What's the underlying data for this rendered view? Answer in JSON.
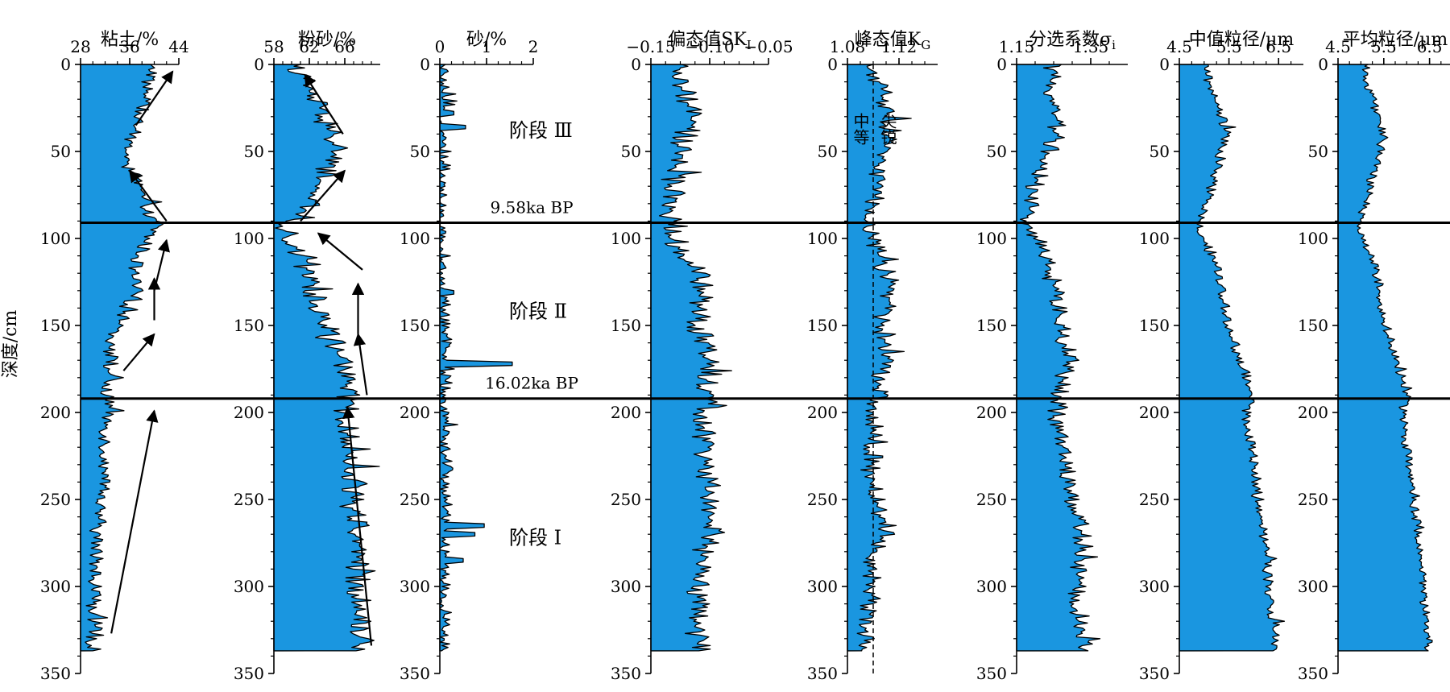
{
  "chart_data": {
    "type": "area",
    "ylabel": "深度/cm",
    "y_range": [
      0,
      350
    ],
    "y_ticks": [
      0,
      50,
      100,
      150,
      200,
      250,
      300,
      350
    ],
    "data_bottom_depth": 337,
    "fill_color": "#1A96E0",
    "line_color": "#000000",
    "boundaries": [
      {
        "depth": 91,
        "label": "9.58ka BP"
      },
      {
        "depth": 192,
        "label": "16.02ka BP"
      }
    ],
    "stages": [
      {
        "label": "阶段 Ⅲ",
        "depth": 38
      },
      {
        "label": "阶段 Ⅱ",
        "depth": 142
      },
      {
        "label": "阶段 Ⅰ",
        "depth": 272
      }
    ],
    "panels": [
      {
        "title": "粘土/%",
        "x_ticks": [
          "28",
          "36",
          "44"
        ],
        "x_range": [
          28,
          44
        ],
        "profile": [
          [
            0,
            39
          ],
          [
            5,
            40
          ],
          [
            10,
            39
          ],
          [
            20,
            38.5
          ],
          [
            30,
            37.5
          ],
          [
            40,
            36.5
          ],
          [
            50,
            35.5
          ],
          [
            60,
            36
          ],
          [
            70,
            37.5
          ],
          [
            80,
            38.5
          ],
          [
            88,
            39
          ],
          [
            91,
            41
          ],
          [
            95,
            40
          ],
          [
            100,
            39
          ],
          [
            110,
            37.5
          ],
          [
            120,
            36.5
          ],
          [
            130,
            37
          ],
          [
            140,
            35.5
          ],
          [
            150,
            34.5
          ],
          [
            160,
            33
          ],
          [
            170,
            33
          ],
          [
            180,
            32.5
          ],
          [
            190,
            32
          ],
          [
            195,
            33
          ],
          [
            200,
            32.5
          ],
          [
            220,
            32
          ],
          [
            240,
            31.5
          ],
          [
            260,
            31
          ],
          [
            280,
            30.5
          ],
          [
            300,
            30.5
          ],
          [
            320,
            30
          ],
          [
            330,
            30
          ],
          [
            337,
            30
          ]
        ],
        "noise": 1.3
      },
      {
        "title": "粉砂/%",
        "x_ticks": [
          "58",
          "62",
          "66"
        ],
        "x_range": [
          58,
          70
        ],
        "profile": [
          [
            0,
            60.5
          ],
          [
            5,
            61
          ],
          [
            10,
            61.5
          ],
          [
            20,
            62.5
          ],
          [
            30,
            63.5
          ],
          [
            40,
            64.5
          ],
          [
            50,
            65
          ],
          [
            60,
            64
          ],
          [
            70,
            63
          ],
          [
            80,
            62
          ],
          [
            88,
            61
          ],
          [
            91,
            58.5
          ],
          [
            95,
            59.5
          ],
          [
            100,
            60
          ],
          [
            110,
            61
          ],
          [
            120,
            62
          ],
          [
            130,
            62.5
          ],
          [
            140,
            63
          ],
          [
            150,
            64
          ],
          [
            160,
            65
          ],
          [
            170,
            65.5
          ],
          [
            180,
            66
          ],
          [
            190,
            66.5
          ],
          [
            195,
            66.5
          ],
          [
            200,
            66
          ],
          [
            220,
            66.5
          ],
          [
            240,
            67
          ],
          [
            260,
            67.5
          ],
          [
            280,
            67.5
          ],
          [
            300,
            67.5
          ],
          [
            320,
            68
          ],
          [
            330,
            68
          ],
          [
            337,
            68
          ]
        ],
        "noise": 1.4
      },
      {
        "title": "砂/%",
        "x_ticks": [
          "0",
          "1",
          "2"
        ],
        "x_range": [
          0,
          2
        ],
        "profile": [
          [
            0,
            0.05
          ],
          [
            20,
            0.05
          ],
          [
            40,
            0.05
          ],
          [
            60,
            0.03
          ],
          [
            80,
            0.02
          ],
          [
            90,
            0.01
          ],
          [
            100,
            0.01
          ],
          [
            120,
            0.05
          ],
          [
            150,
            0.1
          ],
          [
            170,
            0.15
          ],
          [
            190,
            0.1
          ],
          [
            200,
            0.12
          ],
          [
            250,
            0.15
          ],
          [
            280,
            0.12
          ],
          [
            300,
            0.08
          ],
          [
            337,
            0.08
          ]
        ],
        "noise": 0.15,
        "positive": true,
        "spikes": [
          [
            28,
            0.3
          ],
          [
            36,
            0.55
          ],
          [
            131,
            0.3
          ],
          [
            172,
            1.55
          ],
          [
            265,
            0.95
          ],
          [
            270,
            0.75
          ],
          [
            285,
            0.5
          ]
        ]
      },
      {
        "title": "偏态值SK",
        "title_sub": "I",
        "x_ticks": [
          "−0.15",
          "−0.10",
          "−0.05"
        ],
        "x_range": [
          -0.15,
          -0.05
        ],
        "profile": [
          [
            0,
            -0.13
          ],
          [
            10,
            -0.125
          ],
          [
            20,
            -0.12
          ],
          [
            30,
            -0.115
          ],
          [
            40,
            -0.12
          ],
          [
            50,
            -0.125
          ],
          [
            60,
            -0.13
          ],
          [
            70,
            -0.13
          ],
          [
            80,
            -0.13
          ],
          [
            90,
            -0.135
          ],
          [
            95,
            -0.135
          ],
          [
            100,
            -0.13
          ],
          [
            110,
            -0.12
          ],
          [
            120,
            -0.11
          ],
          [
            130,
            -0.105
          ],
          [
            140,
            -0.11
          ],
          [
            150,
            -0.11
          ],
          [
            160,
            -0.105
          ],
          [
            170,
            -0.1
          ],
          [
            180,
            -0.1
          ],
          [
            190,
            -0.105
          ],
          [
            195,
            -0.1
          ],
          [
            200,
            -0.105
          ],
          [
            220,
            -0.105
          ],
          [
            240,
            -0.1
          ],
          [
            260,
            -0.1
          ],
          [
            270,
            -0.1
          ],
          [
            280,
            -0.105
          ],
          [
            300,
            -0.11
          ],
          [
            320,
            -0.11
          ],
          [
            337,
            -0.11
          ]
        ],
        "noise": 0.011
      },
      {
        "title": "峰态值K",
        "title_sub": "G",
        "x_ticks": [
          "1.08",
          "1.12"
        ],
        "x_range": [
          1.08,
          1.15
        ],
        "tick_values": [
          1.08,
          1.12
        ],
        "profile": [
          [
            0,
            1.095
          ],
          [
            10,
            1.105
          ],
          [
            20,
            1.11
          ],
          [
            30,
            1.11
          ],
          [
            40,
            1.11
          ],
          [
            50,
            1.11
          ],
          [
            60,
            1.105
          ],
          [
            70,
            1.105
          ],
          [
            80,
            1.1
          ],
          [
            90,
            1.095
          ],
          [
            100,
            1.1
          ],
          [
            110,
            1.105
          ],
          [
            120,
            1.11
          ],
          [
            130,
            1.115
          ],
          [
            140,
            1.11
          ],
          [
            150,
            1.105
          ],
          [
            160,
            1.11
          ],
          [
            170,
            1.115
          ],
          [
            180,
            1.105
          ],
          [
            190,
            1.105
          ],
          [
            200,
            1.1
          ],
          [
            220,
            1.1
          ],
          [
            240,
            1.1
          ],
          [
            260,
            1.105
          ],
          [
            270,
            1.11
          ],
          [
            280,
            1.1
          ],
          [
            300,
            1.1
          ],
          [
            320,
            1.095
          ],
          [
            337,
            1.095
          ]
        ],
        "noise": 0.008,
        "dashed_ref": 1.1,
        "ref_labels": [
          "中等",
          "尖锐"
        ]
      },
      {
        "title": "分选系数σ",
        "title_sub": "i",
        "x_ticks": [
          "1.15",
          "1.35"
        ],
        "x_range": [
          1.15,
          1.45
        ],
        "tick_values": [
          1.15,
          1.35
        ],
        "profile": [
          [
            0,
            1.25
          ],
          [
            10,
            1.24
          ],
          [
            20,
            1.25
          ],
          [
            30,
            1.26
          ],
          [
            40,
            1.26
          ],
          [
            50,
            1.24
          ],
          [
            60,
            1.22
          ],
          [
            70,
            1.2
          ],
          [
            80,
            1.19
          ],
          [
            90,
            1.18
          ],
          [
            100,
            1.2
          ],
          [
            110,
            1.22
          ],
          [
            120,
            1.24
          ],
          [
            130,
            1.26
          ],
          [
            140,
            1.26
          ],
          [
            150,
            1.27
          ],
          [
            160,
            1.28
          ],
          [
            170,
            1.29
          ],
          [
            180,
            1.28
          ],
          [
            190,
            1.27
          ],
          [
            200,
            1.26
          ],
          [
            220,
            1.27
          ],
          [
            240,
            1.29
          ],
          [
            260,
            1.31
          ],
          [
            270,
            1.33
          ],
          [
            280,
            1.32
          ],
          [
            300,
            1.31
          ],
          [
            320,
            1.32
          ],
          [
            337,
            1.33
          ]
        ],
        "noise": 0.028
      },
      {
        "title": "中值粒径/μm",
        "x_ticks": [
          "4.5",
          "5.5",
          "6.5"
        ],
        "x_range": [
          4.5,
          7.0
        ],
        "tick_values": [
          4.5,
          5.5,
          6.5
        ],
        "profile": [
          [
            0,
            5.0
          ],
          [
            10,
            5.1
          ],
          [
            20,
            5.2
          ],
          [
            30,
            5.35
          ],
          [
            40,
            5.45
          ],
          [
            50,
            5.35
          ],
          [
            60,
            5.25
          ],
          [
            70,
            5.15
          ],
          [
            80,
            5.05
          ],
          [
            90,
            4.9
          ],
          [
            95,
            4.85
          ],
          [
            100,
            5.0
          ],
          [
            110,
            5.15
          ],
          [
            120,
            5.3
          ],
          [
            130,
            5.35
          ],
          [
            140,
            5.4
          ],
          [
            150,
            5.5
          ],
          [
            160,
            5.6
          ],
          [
            170,
            5.7
          ],
          [
            180,
            5.85
          ],
          [
            190,
            5.95
          ],
          [
            195,
            5.9
          ],
          [
            200,
            5.85
          ],
          [
            220,
            5.95
          ],
          [
            240,
            6.05
          ],
          [
            260,
            6.15
          ],
          [
            280,
            6.25
          ],
          [
            300,
            6.3
          ],
          [
            320,
            6.4
          ],
          [
            330,
            6.45
          ],
          [
            337,
            6.45
          ]
        ],
        "noise": 0.11
      },
      {
        "title": "平均粒径/μm",
        "x_ticks": [
          "4.5",
          "5.5",
          "6.5"
        ],
        "x_range": [
          4.5,
          7.0
        ],
        "tick_values": [
          4.5,
          5.5,
          6.5
        ],
        "profile": [
          [
            0,
            5.05
          ],
          [
            10,
            5.15
          ],
          [
            20,
            5.25
          ],
          [
            30,
            5.4
          ],
          [
            40,
            5.5
          ],
          [
            50,
            5.4
          ],
          [
            60,
            5.3
          ],
          [
            70,
            5.2
          ],
          [
            80,
            5.1
          ],
          [
            90,
            4.95
          ],
          [
            95,
            4.9
          ],
          [
            100,
            5.05
          ],
          [
            110,
            5.2
          ],
          [
            120,
            5.35
          ],
          [
            130,
            5.4
          ],
          [
            140,
            5.45
          ],
          [
            150,
            5.55
          ],
          [
            160,
            5.65
          ],
          [
            170,
            5.75
          ],
          [
            180,
            5.9
          ],
          [
            190,
            6.0
          ],
          [
            195,
            5.95
          ],
          [
            200,
            5.9
          ],
          [
            220,
            6.0
          ],
          [
            240,
            6.1
          ],
          [
            260,
            6.2
          ],
          [
            280,
            6.3
          ],
          [
            300,
            6.35
          ],
          [
            320,
            6.45
          ],
          [
            330,
            6.5
          ],
          [
            337,
            6.5
          ]
        ],
        "noise": 0.11
      }
    ],
    "trend_arrows": [
      {
        "panel": 0,
        "from": [
          33,
          327
        ],
        "to": [
          40,
          199
        ]
      },
      {
        "panel": 0,
        "from": [
          35,
          176
        ],
        "to": [
          40,
          155
        ]
      },
      {
        "panel": 0,
        "from": [
          40,
          147
        ],
        "to": [
          40,
          123
        ]
      },
      {
        "panel": 0,
        "from": [
          40,
          130
        ],
        "to": [
          42,
          101
        ]
      },
      {
        "panel": 0,
        "from": [
          42,
          90
        ],
        "to": [
          36,
          61
        ]
      },
      {
        "panel": 0,
        "from": [
          37,
          35
        ],
        "to": [
          43,
          4
        ]
      },
      {
        "panel": 1,
        "from": [
          69,
          334
        ],
        "to": [
          66.3,
          197
        ]
      },
      {
        "panel": 1,
        "from": [
          68.5,
          190
        ],
        "to": [
          67.5,
          155
        ]
      },
      {
        "panel": 1,
        "from": [
          67.5,
          155
        ],
        "to": [
          67.5,
          126
        ]
      },
      {
        "panel": 1,
        "from": [
          68,
          118
        ],
        "to": [
          63,
          97
        ]
      },
      {
        "panel": 1,
        "from": [
          61,
          90
        ],
        "to": [
          66,
          61
        ]
      },
      {
        "panel": 1,
        "from": [
          65.8,
          40
        ],
        "to": [
          61.5,
          6
        ]
      }
    ]
  }
}
